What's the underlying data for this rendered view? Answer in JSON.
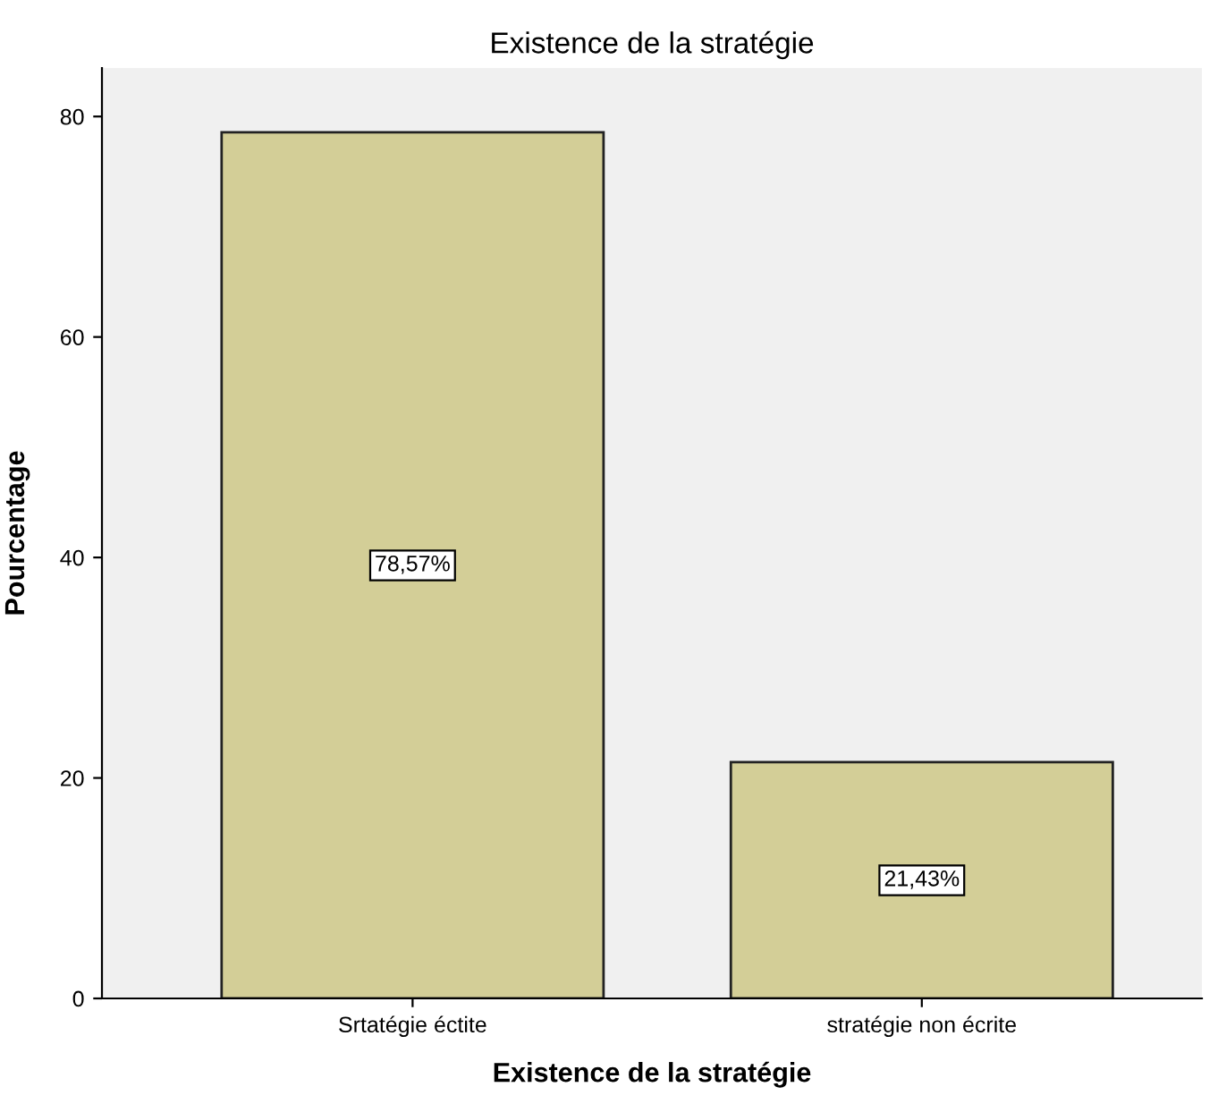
{
  "chart_data": {
    "type": "bar",
    "title": "Existence de la stratégie",
    "xlabel": "Existence de la stratégie",
    "ylabel": "Pourcentage",
    "categories": [
      "Srtatégie éctite",
      "stratégie non écrite"
    ],
    "values": [
      78.57,
      21.43
    ],
    "value_labels": [
      "78,57%",
      "21,43%"
    ],
    "color": "#d3ce97",
    "ylim": [
      0,
      84.4
    ],
    "yticks": [
      0,
      20,
      40,
      60,
      80
    ],
    "grid": false,
    "legend": false
  }
}
